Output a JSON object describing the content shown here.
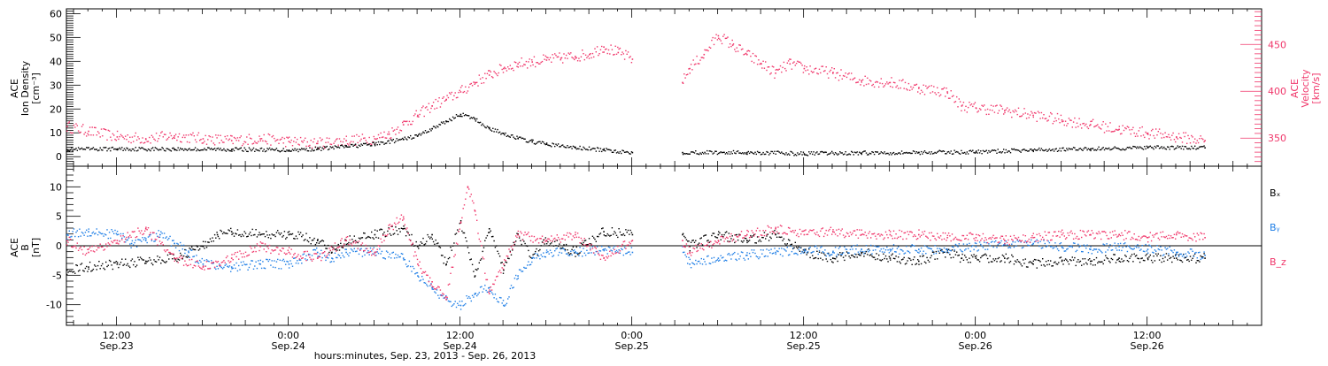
{
  "colors": {
    "black": "#000000",
    "pink": "#f0366a",
    "blue": "#1e7ee6",
    "frame": "#000000"
  },
  "footer": {
    "xlabel": "hours:minutes, Sep. 23, 2013 - Sep. 26, 2013"
  },
  "chart_data": [
    {
      "type": "scatter",
      "panel": "top",
      "ylabel_left": [
        "ACE",
        "Ion Density",
        "[cm⁻³]"
      ],
      "ylabel_right": [
        "ACE",
        "Velocity",
        "[km/s]"
      ],
      "x_unit": "hours since 2013-09-23 00:00 UT",
      "xlim": [
        8.5,
        92
      ],
      "ylim_left": [
        -4,
        62
      ],
      "ylim_right": [
        320,
        488
      ],
      "yticks_left": [
        0,
        10,
        20,
        30,
        40,
        50,
        60
      ],
      "yticks_right": [
        350,
        400,
        450
      ],
      "grid": false,
      "gap": [
        48,
        51.5
      ],
      "series": [
        {
          "name": "Ion Density",
          "axis": "left",
          "color": "black",
          "points": [
            [
              8.5,
              3.2
            ],
            [
              12,
              3.5
            ],
            [
              16,
              3.4
            ],
            [
              20,
              3.3
            ],
            [
              24,
              3.0
            ],
            [
              26,
              3.5
            ],
            [
              28,
              4.5
            ],
            [
              30,
              5.5
            ],
            [
              32,
              7.5
            ],
            [
              33,
              9
            ],
            [
              34,
              12
            ],
            [
              35,
              15
            ],
            [
              36,
              18
            ],
            [
              37,
              16
            ],
            [
              38,
              12
            ],
            [
              39,
              10
            ],
            [
              40,
              8
            ],
            [
              41,
              6.5
            ],
            [
              42,
              5.5
            ],
            [
              44,
              4
            ],
            [
              46,
              3
            ],
            [
              48,
              2
            ],
            [
              51.5,
              2
            ],
            [
              56,
              2
            ],
            [
              60,
              1.5
            ],
            [
              64,
              1.8
            ],
            [
              68,
              2
            ],
            [
              72,
              2.2
            ],
            [
              76,
              3
            ],
            [
              80,
              3.5
            ],
            [
              84,
              4
            ],
            [
              88,
              4
            ]
          ]
        },
        {
          "name": "Velocity",
          "axis": "right",
          "color": "pink",
          "points": [
            [
              8.5,
              363
            ],
            [
              10,
              358
            ],
            [
              12,
              352
            ],
            [
              14,
              350
            ],
            [
              16,
              353
            ],
            [
              18,
              350
            ],
            [
              20,
              348
            ],
            [
              22,
              350
            ],
            [
              24,
              347
            ],
            [
              26,
              345
            ],
            [
              28,
              348
            ],
            [
              30,
              350
            ],
            [
              31,
              355
            ],
            [
              32,
              365
            ],
            [
              33,
              375
            ],
            [
              34,
              385
            ],
            [
              35,
              392
            ],
            [
              36,
              400
            ],
            [
              37,
              410
            ],
            [
              38,
              418
            ],
            [
              39,
              425
            ],
            [
              40,
              430
            ],
            [
              41,
              432
            ],
            [
              42,
              434
            ],
            [
              43,
              436
            ],
            [
              44,
              438
            ],
            [
              45,
              440
            ],
            [
              46,
              448
            ],
            [
              47,
              442
            ],
            [
              48,
              435
            ],
            [
              51.5,
              410
            ],
            [
              52,
              425
            ],
            [
              53,
              440
            ],
            [
              54,
              460
            ],
            [
              55,
              450
            ],
            [
              56,
              440
            ],
            [
              57,
              430
            ],
            [
              58,
              420
            ],
            [
              59,
              430
            ],
            [
              60,
              425
            ],
            [
              62,
              420
            ],
            [
              64,
              412
            ],
            [
              66,
              410
            ],
            [
              68,
              404
            ],
            [
              70,
              400
            ],
            [
              71,
              385
            ],
            [
              72,
              383
            ],
            [
              74,
              380
            ],
            [
              76,
              375
            ],
            [
              78,
              370
            ],
            [
              80,
              365
            ],
            [
              82,
              360
            ],
            [
              84,
              356
            ],
            [
              86,
              352
            ],
            [
              88,
              348
            ]
          ]
        }
      ]
    },
    {
      "type": "scatter",
      "panel": "bottom",
      "ylabel_left": [
        "ACE",
        "B",
        "[nT]"
      ],
      "x_unit": "hours since 2013-09-23 00:00 UT",
      "xlim": [
        8.5,
        92
      ],
      "ylim": [
        -13.5,
        13.5
      ],
      "yticks": [
        -10,
        -5,
        0,
        5,
        10
      ],
      "zero_line": true,
      "gap": [
        48,
        51.5
      ],
      "legend": [
        "Bₓ",
        "Bᵧ",
        "B_z"
      ],
      "series": [
        {
          "name": "Bₓ",
          "color": "black",
          "points": [
            [
              8.5,
              -4
            ],
            [
              10,
              -3.5
            ],
            [
              12,
              -3
            ],
            [
              14,
              -2.5
            ],
            [
              16,
              -2
            ],
            [
              18,
              0
            ],
            [
              19,
              2
            ],
            [
              20,
              2.5
            ],
            [
              22,
              2
            ],
            [
              24,
              2
            ],
            [
              26,
              1
            ],
            [
              27,
              -1
            ],
            [
              28,
              1
            ],
            [
              30,
              2
            ],
            [
              32,
              3
            ],
            [
              33,
              0
            ],
            [
              34,
              2
            ],
            [
              35,
              -3
            ],
            [
              36,
              4
            ],
            [
              37,
              -5
            ],
            [
              38,
              3
            ],
            [
              39,
              -4
            ],
            [
              40,
              2
            ],
            [
              41,
              -2
            ],
            [
              42,
              1
            ],
            [
              44,
              -1
            ],
            [
              46,
              2.5
            ],
            [
              48,
              2
            ],
            [
              51.5,
              2
            ],
            [
              52,
              0
            ],
            [
              54,
              2
            ],
            [
              56,
              1
            ],
            [
              58,
              2
            ],
            [
              60,
              -1
            ],
            [
              62,
              -2
            ],
            [
              64,
              -1
            ],
            [
              66,
              -2
            ],
            [
              68,
              -2.5
            ],
            [
              70,
              -1
            ],
            [
              71,
              -2
            ],
            [
              72,
              -2
            ],
            [
              74,
              -2
            ],
            [
              76,
              -3
            ],
            [
              78,
              -2.5
            ],
            [
              80,
              -2.5
            ],
            [
              82,
              -2
            ],
            [
              84,
              -2
            ],
            [
              86,
              -2
            ],
            [
              88,
              -2
            ]
          ]
        },
        {
          "name": "Bᵧ",
          "color": "blue",
          "points": [
            [
              8.5,
              2
            ],
            [
              10,
              2.5
            ],
            [
              12,
              2
            ],
            [
              13,
              0.5
            ],
            [
              14,
              1
            ],
            [
              15,
              2
            ],
            [
              16,
              0.5
            ],
            [
              17,
              -1
            ],
            [
              18,
              -3
            ],
            [
              20,
              -3.5
            ],
            [
              22,
              -3
            ],
            [
              24,
              -3
            ],
            [
              26,
              -1
            ],
            [
              27,
              -2
            ],
            [
              28,
              -1
            ],
            [
              30,
              -1
            ],
            [
              32,
              -2
            ],
            [
              33,
              -5
            ],
            [
              34,
              -7
            ],
            [
              35,
              -9
            ],
            [
              36,
              -10
            ],
            [
              37,
              -8
            ],
            [
              38,
              -7
            ],
            [
              39,
              -10
            ],
            [
              40,
              -5
            ],
            [
              41,
              -2
            ],
            [
              42,
              -1
            ],
            [
              44,
              -1
            ],
            [
              46,
              -0.5
            ],
            [
              48,
              -1
            ],
            [
              51.5,
              0
            ],
            [
              52,
              -3
            ],
            [
              54,
              -2
            ],
            [
              56,
              -1.5
            ],
            [
              58,
              -1
            ],
            [
              60,
              -0.5
            ],
            [
              62,
              -1
            ],
            [
              64,
              -0.5
            ],
            [
              66,
              -0.5
            ],
            [
              68,
              -0.5
            ],
            [
              70,
              -0.5
            ],
            [
              72,
              0
            ],
            [
              74,
              0.5
            ],
            [
              76,
              0.5
            ],
            [
              78,
              0
            ],
            [
              80,
              -0.5
            ],
            [
              82,
              0
            ],
            [
              84,
              -0.5
            ],
            [
              86,
              -1
            ],
            [
              88,
              -1.5
            ]
          ]
        },
        {
          "name": "B_z",
          "color": "pink",
          "points": [
            [
              8.5,
              1
            ],
            [
              10,
              -1
            ],
            [
              12,
              1
            ],
            [
              14,
              3
            ],
            [
              16,
              -2
            ],
            [
              18,
              -3.5
            ],
            [
              20,
              -2
            ],
            [
              22,
              0
            ],
            [
              24,
              -1
            ],
            [
              26,
              -2
            ],
            [
              28,
              1
            ],
            [
              30,
              -1
            ],
            [
              31,
              3
            ],
            [
              32,
              5
            ],
            [
              33,
              -3
            ],
            [
              34,
              -6
            ],
            [
              35,
              -9
            ],
            [
              36,
              4
            ],
            [
              36.5,
              10
            ],
            [
              37,
              6
            ],
            [
              38,
              -8
            ],
            [
              39,
              -3
            ],
            [
              40,
              2
            ],
            [
              42,
              1
            ],
            [
              44,
              2
            ],
            [
              46,
              -2
            ],
            [
              48,
              1
            ],
            [
              51.5,
              1
            ],
            [
              52,
              -1
            ],
            [
              54,
              1
            ],
            [
              56,
              2
            ],
            [
              58,
              3
            ],
            [
              60,
              2
            ],
            [
              62,
              2.5
            ],
            [
              64,
              2
            ],
            [
              66,
              2
            ],
            [
              68,
              2
            ],
            [
              70,
              1.5
            ],
            [
              72,
              1.5
            ],
            [
              74,
              1
            ],
            [
              76,
              1.5
            ],
            [
              78,
              2
            ],
            [
              80,
              2
            ],
            [
              82,
              2
            ],
            [
              84,
              1.5
            ],
            [
              86,
              2
            ],
            [
              88,
              1.5
            ]
          ]
        }
      ]
    }
  ],
  "x_axis": {
    "major_hours": [
      12,
      24,
      36,
      48,
      60,
      72,
      84
    ],
    "labels": [
      {
        "hour": 12,
        "time": "12:00",
        "date": "Sep.23"
      },
      {
        "hour": 24,
        "time": "0:00",
        "date": "Sep.24"
      },
      {
        "hour": 36,
        "time": "12:00",
        "date": "Sep.24"
      },
      {
        "hour": 48,
        "time": "0:00",
        "date": "Sep.25"
      },
      {
        "hour": 60,
        "time": "12:00",
        "date": "Sep.25"
      },
      {
        "hour": 72,
        "time": "0:00",
        "date": "Sep.26"
      },
      {
        "hour": 84,
        "time": "12:00",
        "date": "Sep.26"
      }
    ]
  }
}
